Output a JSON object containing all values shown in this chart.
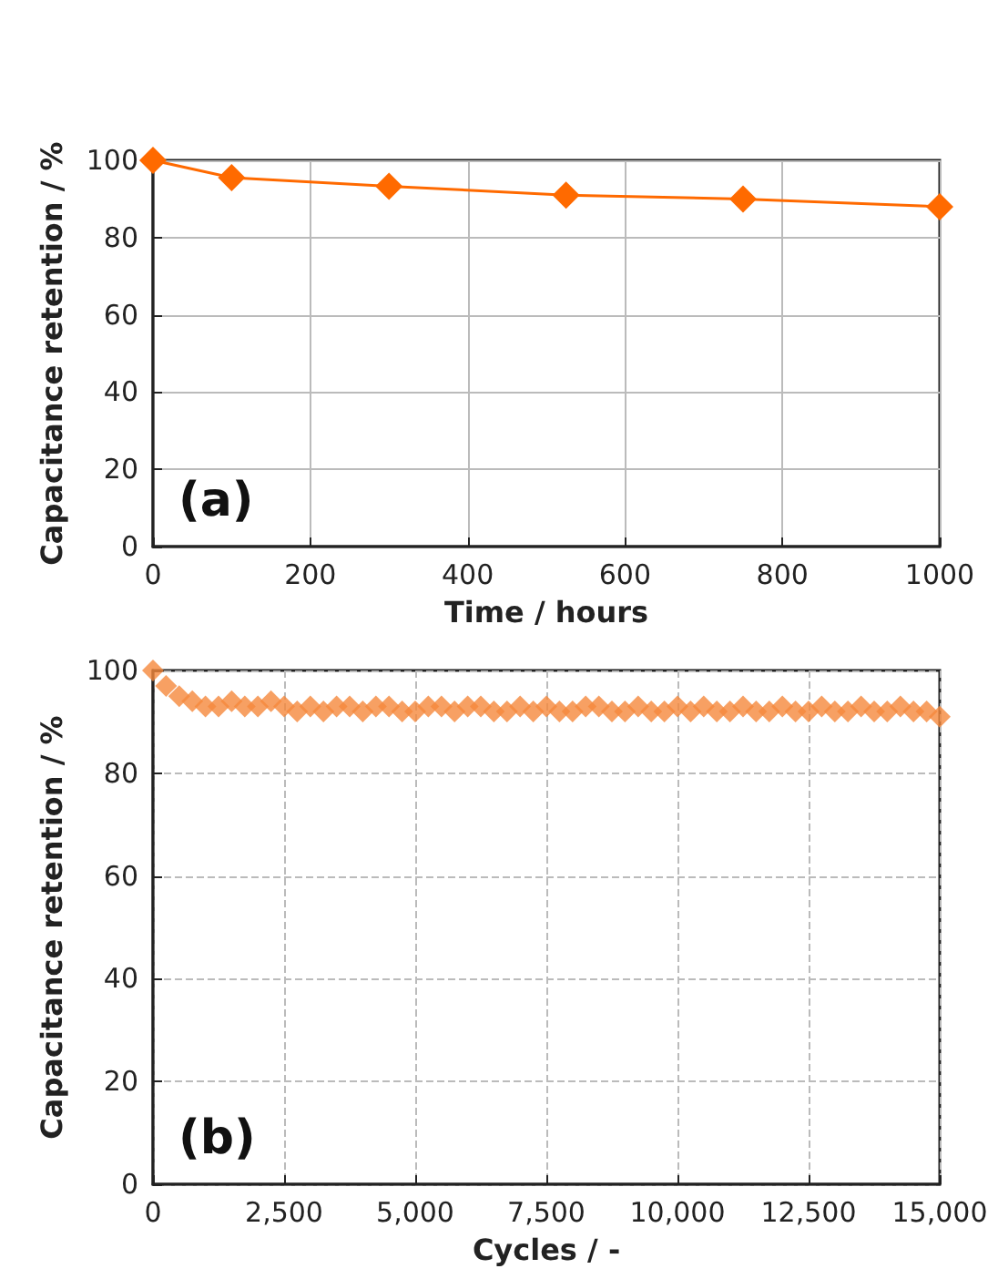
{
  "chart_data": [
    {
      "type": "line",
      "xlabel": "Time / hours",
      "ylabel": "Capacitance retention / %",
      "annotations": [
        "(a)"
      ],
      "x": [
        0,
        100,
        300,
        525,
        750,
        1000
      ],
      "series": [
        {
          "color": "#ff6a00",
          "values": [
            100,
            95.5,
            93.3,
            91,
            90,
            88
          ]
        }
      ],
      "xlim": [
        0,
        1000
      ],
      "xticks": [
        0,
        200,
        400,
        600,
        800,
        1000
      ],
      "ylim": [
        0,
        100
      ],
      "yticks": [
        0,
        20,
        40,
        60,
        80,
        100
      ],
      "grid": true,
      "marker": "diamond",
      "line_style": "solid"
    },
    {
      "type": "scatter",
      "xlabel": "Cycles / -",
      "ylabel": "Capacitance retention / %",
      "annotations": [
        "(b)"
      ],
      "x": [
        0,
        250,
        500,
        750,
        1000,
        1250,
        1500,
        1750,
        2000,
        2250,
        2500,
        2750,
        3000,
        3250,
        3500,
        3750,
        4000,
        4250,
        4500,
        4750,
        5000,
        5250,
        5500,
        5750,
        6000,
        6250,
        6500,
        6750,
        7000,
        7250,
        7500,
        7750,
        8000,
        8250,
        8500,
        8750,
        9000,
        9250,
        9500,
        9750,
        10000,
        10250,
        10500,
        10750,
        11000,
        11250,
        11500,
        11750,
        12000,
        12250,
        12500,
        12750,
        13000,
        13250,
        13500,
        13750,
        14000,
        14250,
        14500,
        14750,
        15000
      ],
      "series": [
        {
          "color": "#f5883c",
          "values": [
            100,
            97,
            95,
            94,
            93,
            93,
            94,
            93,
            93,
            94,
            93,
            92,
            93,
            92,
            93,
            93,
            92,
            93,
            93,
            92,
            92,
            93,
            93,
            92,
            93,
            93,
            92,
            92,
            93,
            92,
            93,
            92,
            92,
            93,
            93,
            92,
            92,
            93,
            92,
            92,
            93,
            92,
            93,
            92,
            92,
            93,
            92,
            92,
            93,
            92,
            92,
            93,
            92,
            92,
            93,
            92,
            92,
            93,
            92,
            92,
            91
          ]
        }
      ],
      "xlim": [
        0,
        15000
      ],
      "xticks": [
        0,
        {
          "value": 2500,
          "label": "2,500"
        },
        {
          "value": 5000,
          "label": "5,000"
        },
        {
          "value": 7500,
          "label": "7,500"
        },
        {
          "value": 10000,
          "label": "10,000"
        },
        {
          "value": 12500,
          "label": "12,500"
        },
        {
          "value": 15000,
          "label": "15,000"
        }
      ],
      "ylim": [
        0,
        100
      ],
      "yticks": [
        0,
        20,
        40,
        60,
        80,
        100
      ],
      "grid": true,
      "marker": "diamond"
    }
  ]
}
